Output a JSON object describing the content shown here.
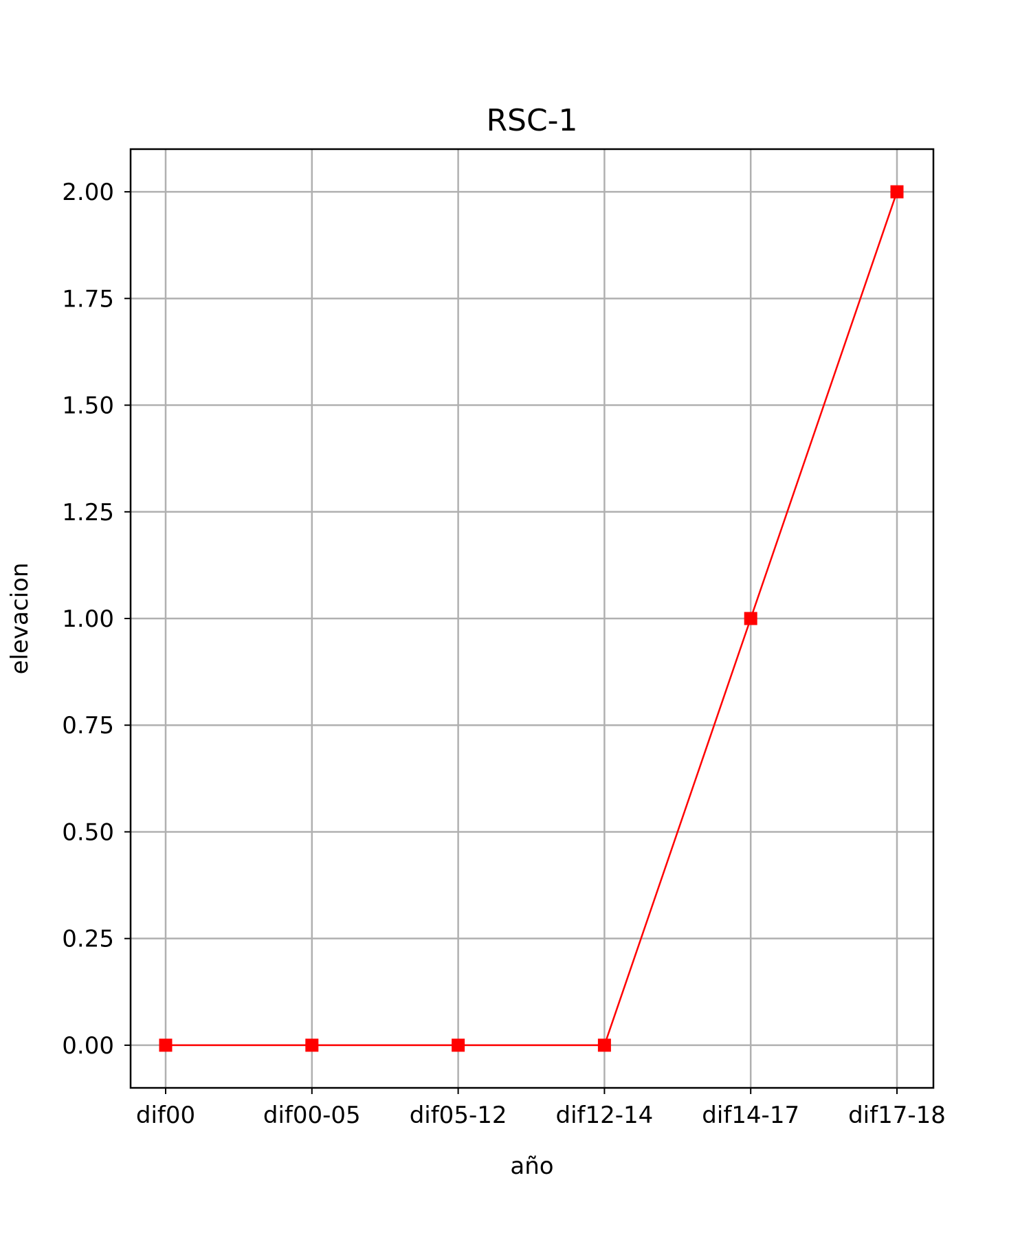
{
  "chart_data": {
    "type": "line",
    "title": "RSC-1",
    "xlabel": "año",
    "ylabel": "elevacion",
    "categories": [
      "dif00",
      "dif00-05",
      "dif05-12",
      "dif12-14",
      "dif14-17",
      "dif17-18"
    ],
    "series": [
      {
        "values": [
          0,
          0,
          0,
          0,
          1,
          2
        ],
        "color": "#ff0000",
        "marker": "square"
      }
    ],
    "ylim": [
      -0.1,
      2.1
    ],
    "yticks": [
      0.0,
      0.25,
      0.5,
      0.75,
      1.0,
      1.25,
      1.5,
      1.75,
      2.0
    ],
    "ytick_labels": [
      "0.00",
      "0.25",
      "0.50",
      "0.75",
      "1.00",
      "1.25",
      "1.50",
      "1.75",
      "2.00"
    ],
    "grid": true,
    "legend": "none"
  }
}
